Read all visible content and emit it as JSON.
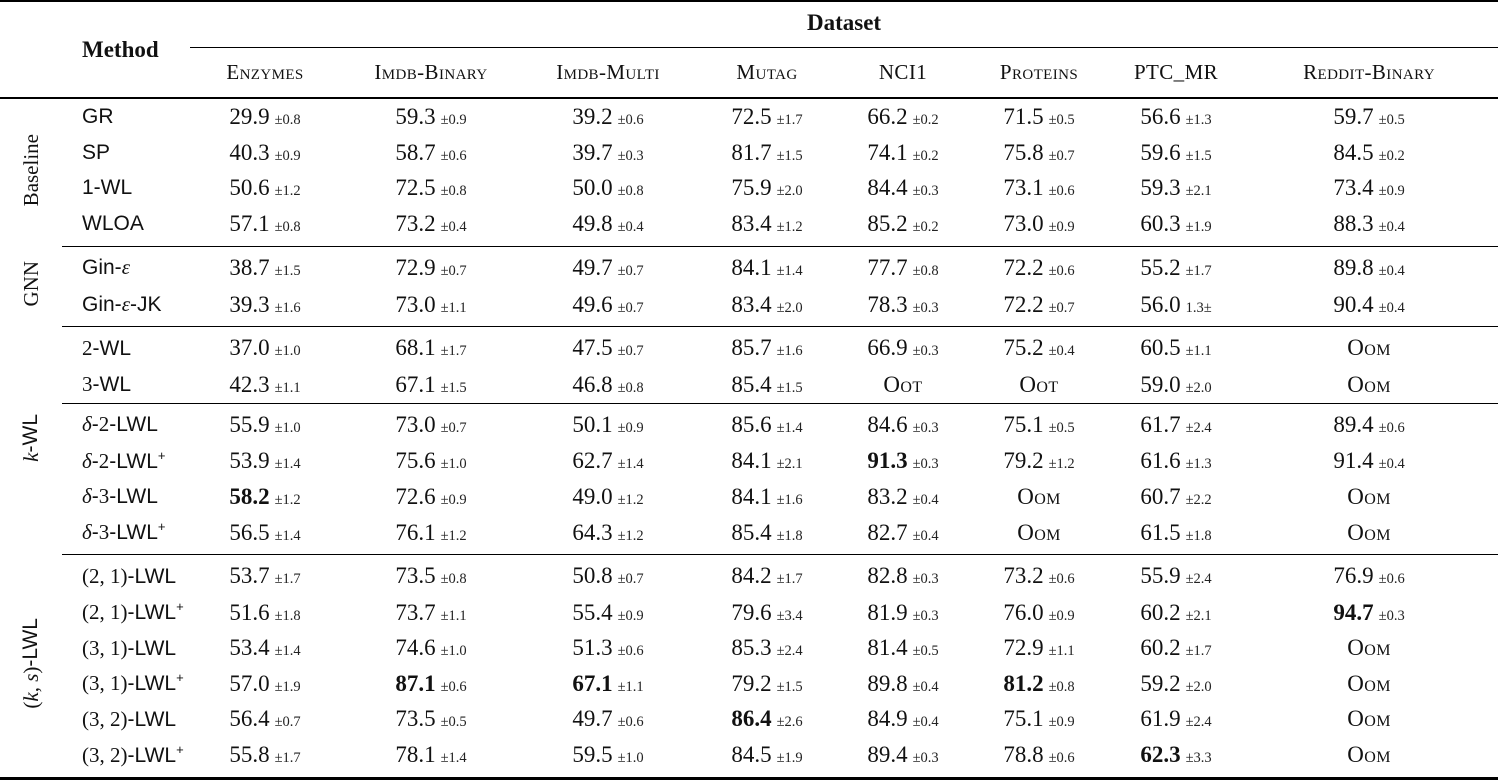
{
  "header": {
    "method_label": "Method",
    "dataset_label": "Dataset",
    "datasets": [
      "Enzymes",
      "Imdb-Binary",
      "Imdb-Multi",
      "Mutag",
      "NCI1",
      "Proteins",
      "PTC_MR",
      "Reddit-Binary"
    ]
  },
  "groups": [
    {
      "id": "baseline",
      "label": [
        {
          "t": "Baseline"
        }
      ],
      "rows": [
        {
          "method": "GR",
          "cells": [
            {
              "v": "29.9",
              "pm": "±0.8"
            },
            {
              "v": "59.3",
              "pm": "±0.9"
            },
            {
              "v": "39.2",
              "pm": "±0.6"
            },
            {
              "v": "72.5",
              "pm": "±1.7"
            },
            {
              "v": "66.2",
              "pm": "±0.2"
            },
            {
              "v": "71.5",
              "pm": "±0.5"
            },
            {
              "v": "56.6",
              "pm": "±1.3"
            },
            {
              "v": "59.7",
              "pm": "±0.5"
            }
          ]
        },
        {
          "method": "SP",
          "cells": [
            {
              "v": "40.3",
              "pm": "±0.9"
            },
            {
              "v": "58.7",
              "pm": "±0.6"
            },
            {
              "v": "39.7",
              "pm": "±0.3"
            },
            {
              "v": "81.7",
              "pm": "±1.5"
            },
            {
              "v": "74.1",
              "pm": "±0.2"
            },
            {
              "v": "75.8",
              "pm": "±0.7"
            },
            {
              "v": "59.6",
              "pm": "±1.5"
            },
            {
              "v": "84.5",
              "pm": "±0.2"
            }
          ]
        },
        {
          "method": "1-WL",
          "cells": [
            {
              "v": "50.6",
              "pm": "±1.2"
            },
            {
              "v": "72.5",
              "pm": "±0.8"
            },
            {
              "v": "50.0",
              "pm": "±0.8"
            },
            {
              "v": "75.9",
              "pm": "±2.0"
            },
            {
              "v": "84.4",
              "pm": "±0.3"
            },
            {
              "v": "73.1",
              "pm": "±0.6"
            },
            {
              "v": "59.3",
              "pm": "±2.1"
            },
            {
              "v": "73.4",
              "pm": "±0.9"
            }
          ]
        },
        {
          "method": "WLOA",
          "cells": [
            {
              "v": "57.1",
              "pm": "±0.8"
            },
            {
              "v": "73.2",
              "pm": "±0.4"
            },
            {
              "v": "49.8",
              "pm": "±0.4"
            },
            {
              "v": "83.4",
              "pm": "±1.2"
            },
            {
              "v": "85.2",
              "pm": "±0.2"
            },
            {
              "v": "73.0",
              "pm": "±0.9"
            },
            {
              "v": "60.3",
              "pm": "±1.9"
            },
            {
              "v": "88.3",
              "pm": "±0.4"
            }
          ]
        }
      ]
    },
    {
      "id": "gnn",
      "label": [
        {
          "t": "GNN"
        }
      ],
      "rows": [
        {
          "method": [
            {
              "t": "Gin-"
            },
            {
              "t": "ε",
              "i": true,
              "ff": "serif"
            }
          ],
          "cells": [
            {
              "v": "38.7",
              "pm": "±1.5"
            },
            {
              "v": "72.9",
              "pm": "±0.7"
            },
            {
              "v": "49.7",
              "pm": "±0.7"
            },
            {
              "v": "84.1",
              "pm": "±1.4"
            },
            {
              "v": "77.7",
              "pm": "±0.8"
            },
            {
              "v": "72.2",
              "pm": "±0.6"
            },
            {
              "v": "55.2",
              "pm": "±1.7"
            },
            {
              "v": "89.8",
              "pm": "±0.4"
            }
          ]
        },
        {
          "method": [
            {
              "t": "Gin-"
            },
            {
              "t": "ε",
              "i": true,
              "ff": "serif"
            },
            {
              "t": "-JK"
            }
          ],
          "cells": [
            {
              "v": "39.3",
              "pm": "±1.6"
            },
            {
              "v": "73.0",
              "pm": "±1.1"
            },
            {
              "v": "49.6",
              "pm": "±0.7"
            },
            {
              "v": "83.4",
              "pm": "±2.0"
            },
            {
              "v": "78.3",
              "pm": "±0.3"
            },
            {
              "v": "72.2",
              "pm": "±0.7"
            },
            {
              "v": "56.0",
              "pm": "1.3±"
            },
            {
              "v": "90.4",
              "pm": "±0.4"
            }
          ]
        }
      ]
    },
    {
      "id": "k-wl",
      "label": [
        {
          "t": "k",
          "i": true
        },
        {
          "t": "-WL",
          "ff": "sans"
        }
      ],
      "divider": 2,
      "rows": [
        {
          "method": [
            {
              "t": "2",
              "ff": "serif"
            },
            {
              "t": "-WL"
            }
          ],
          "cells": [
            {
              "v": "37.0",
              "pm": "±1.0"
            },
            {
              "v": "68.1",
              "pm": "±1.7"
            },
            {
              "v": "47.5",
              "pm": "±0.7"
            },
            {
              "v": "85.7",
              "pm": "±1.6"
            },
            {
              "v": "66.9",
              "pm": "±0.3"
            },
            {
              "v": "75.2",
              "pm": "±0.4"
            },
            {
              "v": "60.5",
              "pm": "±1.1"
            },
            {
              "v": "Oom",
              "sc": true
            }
          ]
        },
        {
          "method": [
            {
              "t": "3",
              "ff": "serif"
            },
            {
              "t": "-WL"
            }
          ],
          "cells": [
            {
              "v": "42.3",
              "pm": "±1.1"
            },
            {
              "v": "67.1",
              "pm": "±1.5"
            },
            {
              "v": "46.8",
              "pm": "±0.8"
            },
            {
              "v": "85.4",
              "pm": "±1.5"
            },
            {
              "v": "Oot",
              "sc": true
            },
            {
              "v": "Oot",
              "sc": true
            },
            {
              "v": "59.0",
              "pm": "±2.0"
            },
            {
              "v": "Oom",
              "sc": true
            }
          ]
        },
        {
          "method": [
            {
              "t": "δ",
              "i": true,
              "ff": "serif"
            },
            {
              "t": "-"
            },
            {
              "t": "2",
              "ff": "serif"
            },
            {
              "t": "-LWL"
            }
          ],
          "cells": [
            {
              "v": "55.9",
              "pm": "±1.0"
            },
            {
              "v": "73.0",
              "pm": "±0.7"
            },
            {
              "v": "50.1",
              "pm": "±0.9"
            },
            {
              "v": "85.6",
              "pm": "±1.4"
            },
            {
              "v": "84.6",
              "pm": "±0.3"
            },
            {
              "v": "75.1",
              "pm": "±0.5"
            },
            {
              "v": "61.7",
              "pm": "±2.4"
            },
            {
              "v": "89.4",
              "pm": "±0.6"
            }
          ]
        },
        {
          "method": [
            {
              "t": "δ",
              "i": true,
              "ff": "serif"
            },
            {
              "t": "-"
            },
            {
              "t": "2",
              "ff": "serif"
            },
            {
              "t": "-LWL"
            },
            {
              "t": "+",
              "sup": true
            }
          ],
          "cells": [
            {
              "v": "53.9",
              "pm": "±1.4"
            },
            {
              "v": "75.6",
              "pm": "±1.0"
            },
            {
              "v": "62.7",
              "pm": "±1.4"
            },
            {
              "v": "84.1",
              "pm": "±2.1"
            },
            {
              "v": "91.3",
              "pm": "±0.3",
              "b": true
            },
            {
              "v": "79.2",
              "pm": "±1.2"
            },
            {
              "v": "61.6",
              "pm": "±1.3"
            },
            {
              "v": "91.4",
              "pm": "±0.4"
            }
          ]
        },
        {
          "method": [
            {
              "t": "δ",
              "i": true,
              "ff": "serif"
            },
            {
              "t": "-"
            },
            {
              "t": "3",
              "ff": "serif"
            },
            {
              "t": "-LWL"
            }
          ],
          "cells": [
            {
              "v": "58.2",
              "pm": "±1.2",
              "b": true
            },
            {
              "v": "72.6",
              "pm": "±0.9"
            },
            {
              "v": "49.0",
              "pm": "±1.2"
            },
            {
              "v": "84.1",
              "pm": "±1.6"
            },
            {
              "v": "83.2",
              "pm": "±0.4"
            },
            {
              "v": "Oom",
              "sc": true
            },
            {
              "v": "60.7",
              "pm": "±2.2"
            },
            {
              "v": "Oom",
              "sc": true
            }
          ]
        },
        {
          "method": [
            {
              "t": "δ",
              "i": true,
              "ff": "serif"
            },
            {
              "t": "-"
            },
            {
              "t": "3",
              "ff": "serif"
            },
            {
              "t": "-LWL"
            },
            {
              "t": "+",
              "sup": true
            }
          ],
          "cells": [
            {
              "v": "56.5",
              "pm": "±1.4"
            },
            {
              "v": "76.1",
              "pm": "±1.2"
            },
            {
              "v": "64.3",
              "pm": "±1.2"
            },
            {
              "v": "85.4",
              "pm": "±1.8"
            },
            {
              "v": "82.7",
              "pm": "±0.4"
            },
            {
              "v": "Oom",
              "sc": true
            },
            {
              "v": "61.5",
              "pm": "±1.8"
            },
            {
              "v": "Oom",
              "sc": true
            }
          ]
        }
      ]
    },
    {
      "id": "ks-lwl",
      "label": [
        {
          "t": "(",
          "ff": "serif"
        },
        {
          "t": "k, s",
          "i": true
        },
        {
          "t": ")",
          "ff": "serif"
        },
        {
          "t": "-LWL",
          "ff": "sans"
        }
      ],
      "rows": [
        {
          "method": [
            {
              "t": "(2, 1)",
              "ff": "serif"
            },
            {
              "t": "-LWL"
            }
          ],
          "cells": [
            {
              "v": "53.7",
              "pm": "±1.7"
            },
            {
              "v": "73.5",
              "pm": "±0.8"
            },
            {
              "v": "50.8",
              "pm": "±0.7"
            },
            {
              "v": "84.2",
              "pm": "±1.7"
            },
            {
              "v": "82.8",
              "pm": "±0.3"
            },
            {
              "v": "73.2",
              "pm": "±0.6"
            },
            {
              "v": "55.9",
              "pm": "±2.4"
            },
            {
              "v": "76.9",
              "pm": "±0.6"
            }
          ]
        },
        {
          "method": [
            {
              "t": "(2, 1)",
              "ff": "serif"
            },
            {
              "t": "-LWL"
            },
            {
              "t": "+",
              "sup": true
            }
          ],
          "cells": [
            {
              "v": "51.6",
              "pm": "±1.8"
            },
            {
              "v": "73.7",
              "pm": "±1.1"
            },
            {
              "v": "55.4",
              "pm": "±0.9"
            },
            {
              "v": "79.6",
              "pm": "±3.4"
            },
            {
              "v": "81.9",
              "pm": "±0.3"
            },
            {
              "v": "76.0",
              "pm": "±0.9"
            },
            {
              "v": "60.2",
              "pm": "±2.1"
            },
            {
              "v": "94.7",
              "pm": "±0.3",
              "b": true
            }
          ]
        },
        {
          "method": [
            {
              "t": "(3, 1)",
              "ff": "serif"
            },
            {
              "t": "-LWL"
            }
          ],
          "cells": [
            {
              "v": "53.4",
              "pm": "±1.4"
            },
            {
              "v": "74.6",
              "pm": "±1.0"
            },
            {
              "v": "51.3",
              "pm": "±0.6"
            },
            {
              "v": "85.3",
              "pm": "±2.4"
            },
            {
              "v": "81.4",
              "pm": "±0.5"
            },
            {
              "v": "72.9",
              "pm": "±1.1"
            },
            {
              "v": "60.2",
              "pm": "±1.7"
            },
            {
              "v": "Oom",
              "sc": true
            }
          ]
        },
        {
          "method": [
            {
              "t": "(3, 1)",
              "ff": "serif"
            },
            {
              "t": "-LWL"
            },
            {
              "t": "+",
              "sup": true
            }
          ],
          "cells": [
            {
              "v": "57.0",
              "pm": "±1.9"
            },
            {
              "v": "87.1",
              "pm": "±0.6",
              "b": true
            },
            {
              "v": "67.1",
              "pm": "±1.1",
              "b": true
            },
            {
              "v": "79.2",
              "pm": "±1.5"
            },
            {
              "v": "89.8",
              "pm": "±0.4"
            },
            {
              "v": "81.2",
              "pm": "±0.8",
              "b": true
            },
            {
              "v": "59.2",
              "pm": "±2.0"
            },
            {
              "v": "Oom",
              "sc": true
            }
          ]
        },
        {
          "method": [
            {
              "t": "(3, 2)",
              "ff": "serif"
            },
            {
              "t": "-LWL"
            }
          ],
          "cells": [
            {
              "v": "56.4",
              "pm": "±0.7"
            },
            {
              "v": "73.5",
              "pm": "±0.5"
            },
            {
              "v": "49.7",
              "pm": "±0.6"
            },
            {
              "v": "86.4",
              "pm": "±2.6",
              "b": true
            },
            {
              "v": "84.9",
              "pm": "±0.4"
            },
            {
              "v": "75.1",
              "pm": "±0.9"
            },
            {
              "v": "61.9",
              "pm": "±2.4"
            },
            {
              "v": "Oom",
              "sc": true
            }
          ]
        },
        {
          "method": [
            {
              "t": "(3, 2)",
              "ff": "serif"
            },
            {
              "t": "-LWL"
            },
            {
              "t": "+",
              "sup": true
            }
          ],
          "cells": [
            {
              "v": "55.8",
              "pm": "±1.7"
            },
            {
              "v": "78.1",
              "pm": "±1.4"
            },
            {
              "v": "59.5",
              "pm": "±1.0"
            },
            {
              "v": "84.5",
              "pm": "±1.9"
            },
            {
              "v": "89.4",
              "pm": "±0.3"
            },
            {
              "v": "78.8",
              "pm": "±0.6"
            },
            {
              "v": "62.3",
              "pm": "±3.3",
              "b": true
            },
            {
              "v": "Oom",
              "sc": true
            }
          ]
        }
      ]
    }
  ]
}
